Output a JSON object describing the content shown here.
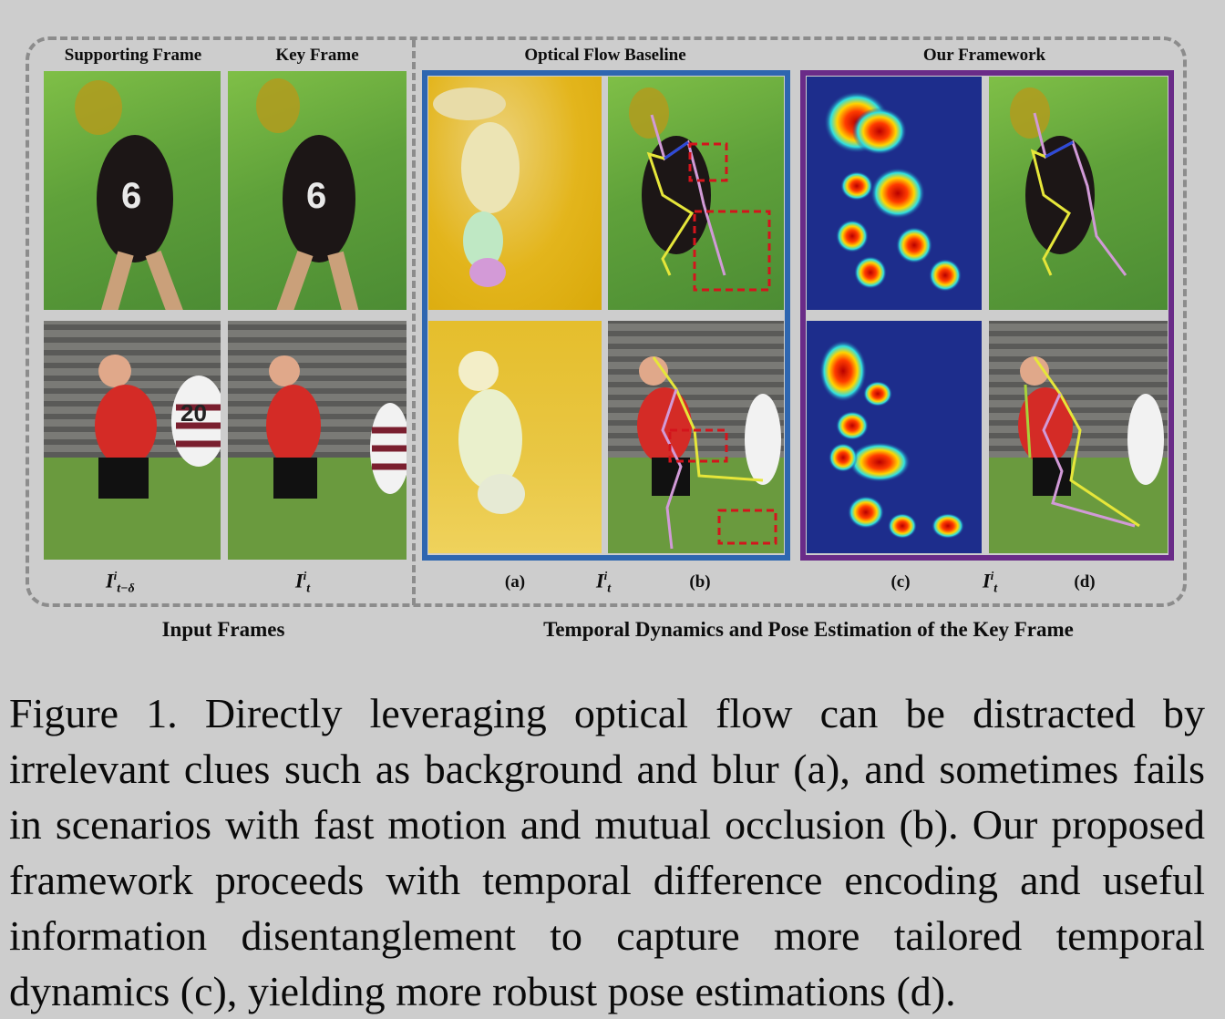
{
  "figure": {
    "headers": {
      "supporting_frame": "Supporting Frame",
      "key_frame": "Key Frame",
      "optical_flow_baseline": "Optical Flow Baseline",
      "our_framework": "Our Framework"
    },
    "sub_labels": {
      "a": "(a)",
      "b": "(b)",
      "c": "(c)",
      "d": "(d)"
    },
    "math": {
      "I": "I",
      "sup": "i",
      "sub_supporting": "t−δ",
      "sub_key": "t"
    },
    "group_labels": {
      "input": "Input Frames",
      "temporal": "Temporal Dynamics and Pose Estimation of the Key Frame"
    },
    "colors": {
      "flow_box": "#2e66b0",
      "ours_box": "#6a2b88",
      "highlight_box": "#d4141c"
    }
  },
  "caption": "Figure 1.  Directly leveraging optical flow can be distracted by irrelevant clues such as background and blur (a), and sometimes fails in scenarios with fast motion and mutual occlusion (b). Our proposed framework proceeds with temporal difference encoding and useful information disentanglement to capture more tailored temporal dynamics (c), yielding more robust pose estimations (d)."
}
